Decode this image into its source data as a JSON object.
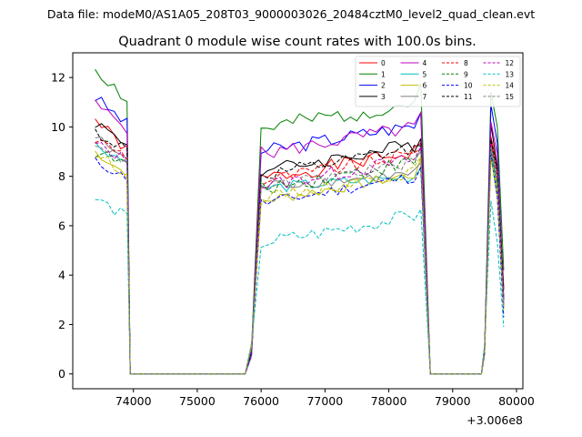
{
  "suptitle": "Data file: modeM0/AS1A05_208T03_9000003026_20484cztM0_level2_quad_clean.evt",
  "chart_data": {
    "type": "line",
    "title": "Quadrant 0 module wise count rates with 100.0s bins.",
    "xlabel": "",
    "ylabel": "",
    "x_offset_label": "+3.006e8",
    "xlim": [
      73050,
      80100
    ],
    "ylim": [
      -0.6,
      13.0
    ],
    "xticks": [
      74000,
      75000,
      76000,
      77000,
      78000,
      79000,
      80000
    ],
    "yticks": [
      0,
      2,
      4,
      6,
      8,
      10,
      12
    ],
    "grid": false,
    "legend_position": "top-right",
    "segments": [
      {
        "start": 73400,
        "n": 6
      },
      {
        "start": 76000,
        "n": 26
      },
      {
        "start": 79600,
        "n": 3
      }
    ],
    "zero_points": [
      73950,
      75750,
      75850,
      78650,
      79450
    ],
    "peak_x": 79600,
    "series": [
      {
        "name": "0",
        "color": "#ff0000",
        "dash": false,
        "base": 7.9,
        "start": 10.3,
        "peak": 9.6,
        "last": 3.5,
        "shape": "up",
        "noise": 0.25,
        "seed": 1
      },
      {
        "name": "1",
        "color": "#008000",
        "dash": false,
        "base": 9.9,
        "start": 12.4,
        "peak": 11.4,
        "last": 4.2,
        "shape": "up",
        "noise": 0.3,
        "seed": 2
      },
      {
        "name": "2",
        "color": "#0000ff",
        "dash": false,
        "base": 9.0,
        "start": 11.2,
        "peak": 10.9,
        "last": 3.0,
        "shape": "up",
        "noise": 0.25,
        "seed": 3
      },
      {
        "name": "3",
        "color": "#000000",
        "dash": false,
        "base": 8.2,
        "start": 10.2,
        "peak": 10.1,
        "last": 3.4,
        "shape": "up",
        "noise": 0.25,
        "seed": 4
      },
      {
        "name": "4",
        "color": "#bf00bf",
        "dash": false,
        "base": 8.9,
        "start": 10.9,
        "peak": 10.2,
        "last": 3.1,
        "shape": "up",
        "noise": 0.25,
        "seed": 5
      },
      {
        "name": "5",
        "color": "#00bfbf",
        "dash": false,
        "base": 7.5,
        "start": 9.3,
        "peak": 9.0,
        "last": 2.6,
        "shape": "flat",
        "noise": 0.2,
        "seed": 6
      },
      {
        "name": "6",
        "color": "#bfbf00",
        "dash": false,
        "base": 7.0,
        "start": 9.0,
        "peak": 8.8,
        "last": 2.6,
        "shape": "up",
        "noise": 0.2,
        "seed": 7
      },
      {
        "name": "7",
        "color": "#808080",
        "dash": false,
        "base": 7.6,
        "start": 9.6,
        "peak": 9.4,
        "last": 2.7,
        "shape": "flat",
        "noise": 0.2,
        "seed": 8
      },
      {
        "name": "8",
        "color": "#ff0000",
        "dash": true,
        "base": 7.8,
        "start": 9.5,
        "peak": 9.4,
        "last": 2.8,
        "shape": "up",
        "noise": 0.25,
        "seed": 9
      },
      {
        "name": "9",
        "color": "#008000",
        "dash": true,
        "base": 7.5,
        "start": 9.0,
        "peak": 9.2,
        "last": 2.8,
        "shape": "up",
        "noise": 0.25,
        "seed": 10
      },
      {
        "name": "10",
        "color": "#0000ff",
        "dash": true,
        "base": 6.9,
        "start": 8.6,
        "peak": 8.9,
        "last": 2.3,
        "shape": "up",
        "noise": 0.2,
        "seed": 11
      },
      {
        "name": "11",
        "color": "#000000",
        "dash": true,
        "base": 8.0,
        "start": 9.8,
        "peak": 9.5,
        "last": 3.0,
        "shape": "up",
        "noise": 0.25,
        "seed": 12
      },
      {
        "name": "12",
        "color": "#bf00bf",
        "dash": true,
        "base": 7.6,
        "start": 9.3,
        "peak": 9.3,
        "last": 2.9,
        "shape": "up",
        "noise": 0.25,
        "seed": 13
      },
      {
        "name": "13",
        "color": "#00bfbf",
        "dash": true,
        "base": 5.3,
        "start": 7.1,
        "peak": 7.0,
        "last": 1.9,
        "shape": "up",
        "noise": 0.25,
        "seed": 14
      },
      {
        "name": "14",
        "color": "#bfbf00",
        "dash": true,
        "base": 7.1,
        "start": 8.9,
        "peak": 8.7,
        "last": 2.6,
        "shape": "up",
        "noise": 0.2,
        "seed": 15
      },
      {
        "name": "15",
        "color": "#808080",
        "dash": true,
        "base": 7.5,
        "start": 9.4,
        "peak": 9.2,
        "last": 2.7,
        "shape": "up",
        "noise": 0.2,
        "seed": 16
      }
    ]
  }
}
